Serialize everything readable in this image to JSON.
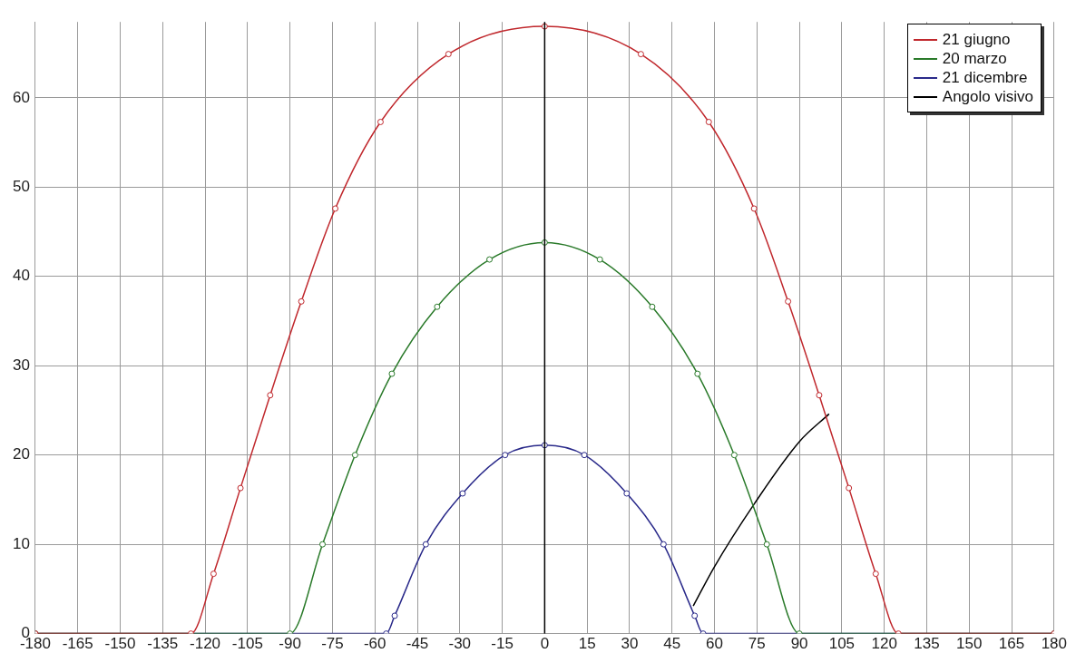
{
  "chart_data": {
    "type": "line",
    "xlim": [
      -180,
      180
    ],
    "ylim": [
      0,
      68.5
    ],
    "xticks": [
      -180,
      -165,
      -150,
      -135,
      -120,
      -105,
      -90,
      -75,
      -60,
      -45,
      -30,
      -15,
      0,
      15,
      30,
      45,
      60,
      75,
      90,
      105,
      120,
      135,
      150,
      165,
      180
    ],
    "yticks": [
      0,
      10,
      20,
      30,
      40,
      50,
      60
    ],
    "grid": true,
    "legend": "top right",
    "marker": "circle",
    "line_style": "solid",
    "ref_lines": [
      {
        "axis": "x",
        "value": 0,
        "color": "#000000"
      }
    ],
    "series": [
      {
        "name": "21 giugno",
        "color": "#c0282d",
        "x": [
          -180,
          -125,
          -117,
          -107.5,
          -97,
          -86,
          -74,
          -58,
          -34,
          0,
          34,
          58,
          74,
          86,
          97,
          107.5,
          117,
          125,
          180
        ],
        "values": [
          0,
          0,
          6.7,
          16.3,
          26.7,
          37.2,
          47.6,
          57.3,
          64.9,
          68,
          64.9,
          57.3,
          47.6,
          37.2,
          26.7,
          16.3,
          6.7,
          0,
          0
        ]
      },
      {
        "name": "20 marzo",
        "color": "#2a7a2a",
        "x": [
          -180,
          -90,
          -78.5,
          -67,
          -54,
          -38,
          -19.5,
          0,
          19.5,
          38,
          54,
          67,
          78.5,
          90,
          180
        ],
        "values": [
          0,
          0,
          10,
          20,
          29.1,
          36.6,
          41.9,
          43.8,
          41.9,
          36.6,
          29.1,
          20,
          10,
          0,
          0
        ]
      },
      {
        "name": "21 dicembre",
        "color": "#2a2a8a",
        "x": [
          -180,
          -56,
          -53,
          -42,
          -29,
          -14,
          0,
          14,
          29,
          42,
          53,
          56,
          180
        ],
        "values": [
          0,
          0,
          2,
          10,
          15.7,
          20,
          21.1,
          20,
          15.7,
          10,
          2,
          0,
          0
        ]
      },
      {
        "name": "Angolo visivo",
        "color": "#000000",
        "marker": "none",
        "x": [
          52.5,
          60,
          74,
          90,
          100.5
        ],
        "values": [
          3.1,
          7.5,
          14.5,
          21.5,
          24.6
        ]
      }
    ]
  }
}
